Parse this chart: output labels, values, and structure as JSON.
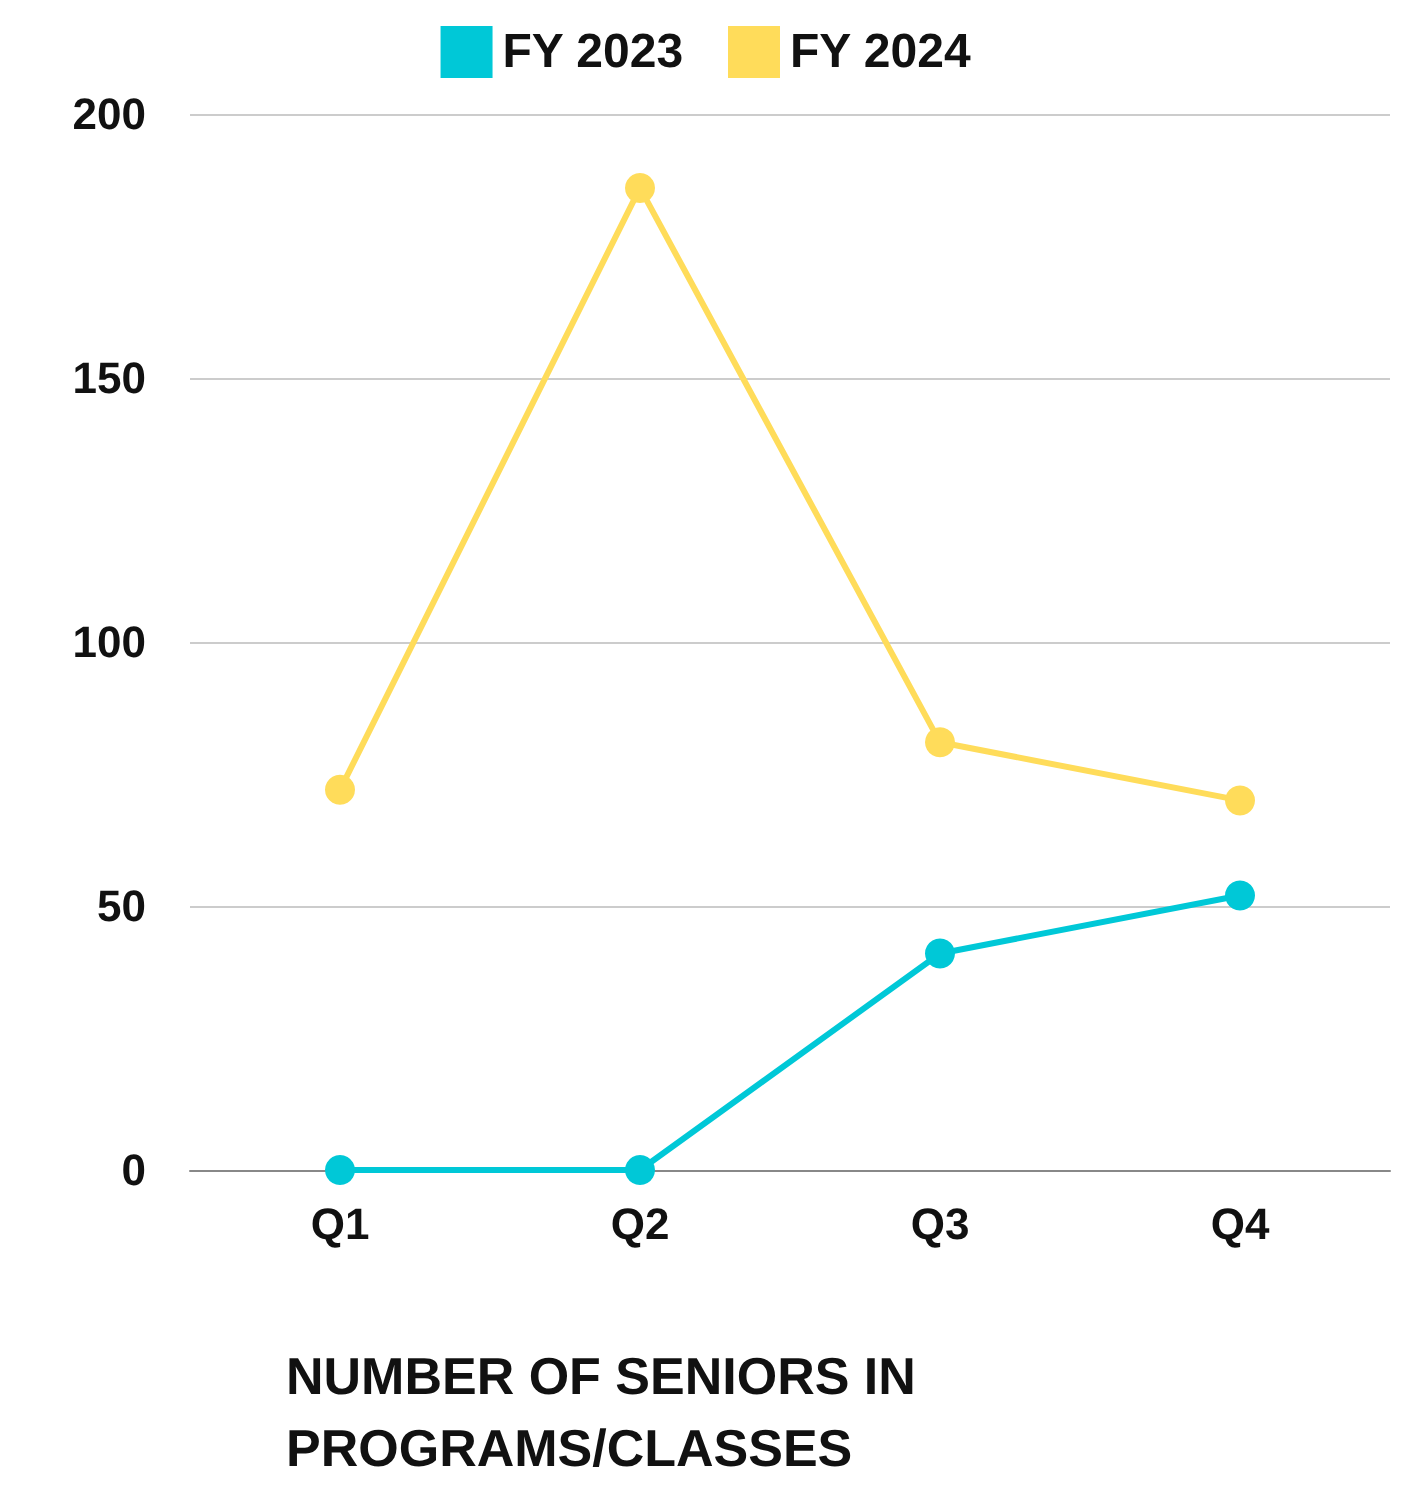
{
  "chart_data": {
    "type": "line",
    "xlabel": "NUMBER OF SENIORS IN PROGRAMS/CLASSES",
    "categories": [
      "Q1",
      "Q2",
      "Q3",
      "Q4"
    ],
    "series": [
      {
        "name": "FY 2023",
        "color": "#00c8d7",
        "values": [
          0,
          0,
          41,
          52
        ]
      },
      {
        "name": "FY 2024",
        "color": "#ffdc5a",
        "values": [
          72,
          186,
          81,
          70
        ]
      }
    ],
    "ylim": [
      0,
      200
    ],
    "yticks": [
      0,
      50,
      100,
      150,
      200
    ],
    "grid": "y",
    "legend": "top",
    "marker": "circle",
    "line_style": "solid"
  }
}
